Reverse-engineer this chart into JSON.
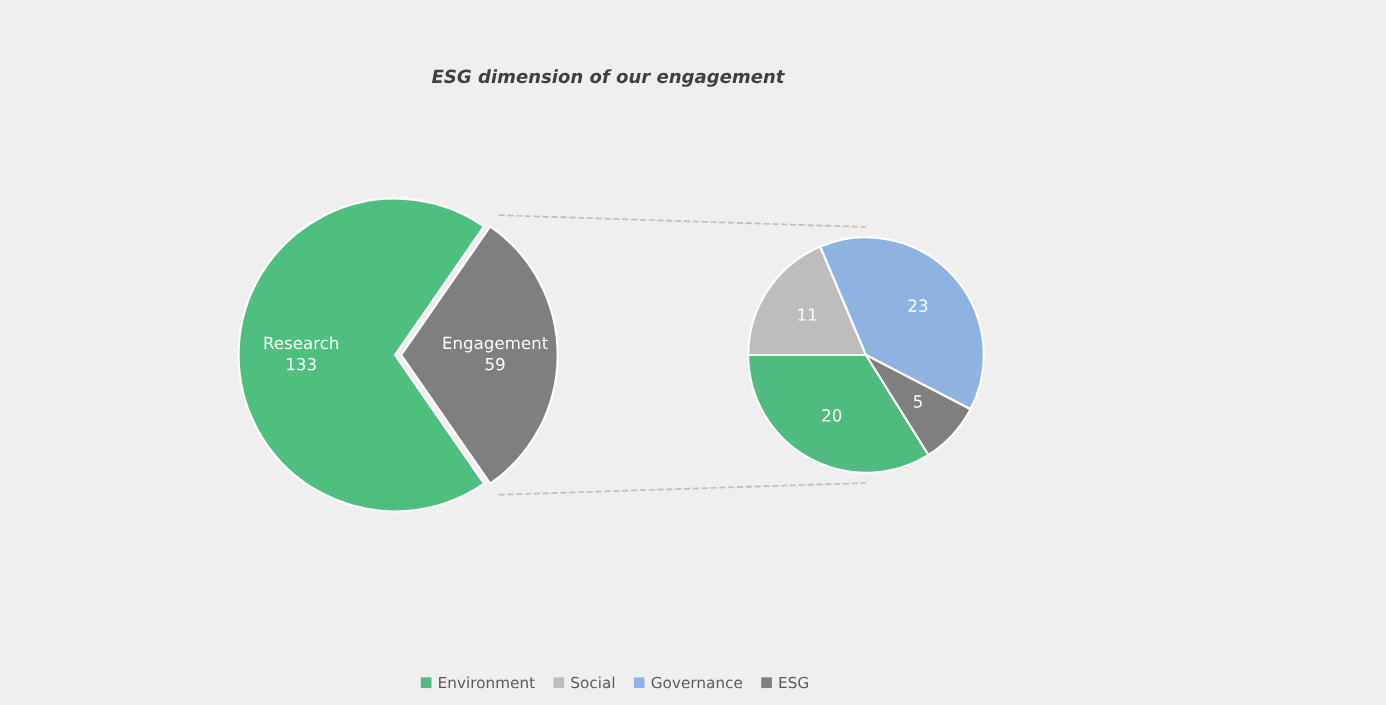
{
  "chart_data": [
    {
      "type": "pie",
      "title": "ESG dimension of our engagement",
      "categories": [
        "Research",
        "Engagement"
      ],
      "values": [
        133,
        59
      ],
      "colors": [
        "#4fbf7f",
        "#7f7f7f"
      ],
      "data_labels": true
    },
    {
      "type": "pie",
      "categories": [
        "Environment",
        "Social",
        "Governance",
        "ESG"
      ],
      "values": [
        20,
        11,
        23,
        5
      ],
      "colors": [
        "#4fbb7e",
        "#bdbdbd",
        "#8db3e2",
        "#7f7f7f"
      ],
      "data_labels": true,
      "legend": "bottom"
    }
  ]
}
